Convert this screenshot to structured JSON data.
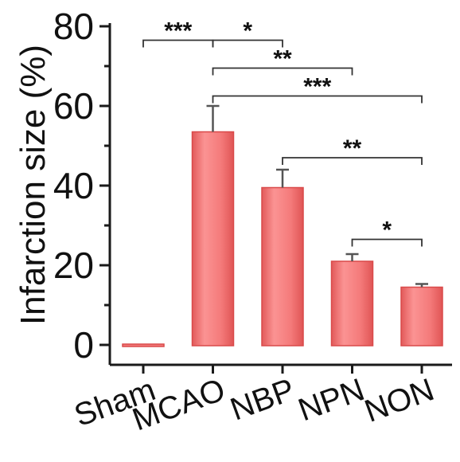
{
  "chart_data": {
    "type": "bar",
    "categories": [
      "Sham",
      "MCAO",
      "NBP",
      "NPN",
      "NON"
    ],
    "values": [
      0,
      53.5,
      39.5,
      21,
      14.5
    ],
    "errors": [
      0,
      6.5,
      4.5,
      1.8,
      0.8
    ],
    "ylabel": "Infarction size (%)",
    "xlabel": "",
    "ylim": [
      -5,
      80
    ],
    "yticks": [
      0,
      20,
      40,
      60,
      80
    ],
    "bar_color": "#f47a7a",
    "significance": [
      {
        "from": 0,
        "to": 1,
        "label": "***",
        "y": 76.5
      },
      {
        "from": 1,
        "to": 2,
        "label": "*",
        "y": 76.5
      },
      {
        "from": 1,
        "to": 3,
        "label": "**",
        "y": 69.5
      },
      {
        "from": 1,
        "to": 4,
        "label": "***",
        "y": 62.5
      },
      {
        "from": 2,
        "to": 4,
        "label": "**",
        "y": 47
      },
      {
        "from": 3,
        "to": 4,
        "label": "*",
        "y": 26.5
      }
    ]
  }
}
